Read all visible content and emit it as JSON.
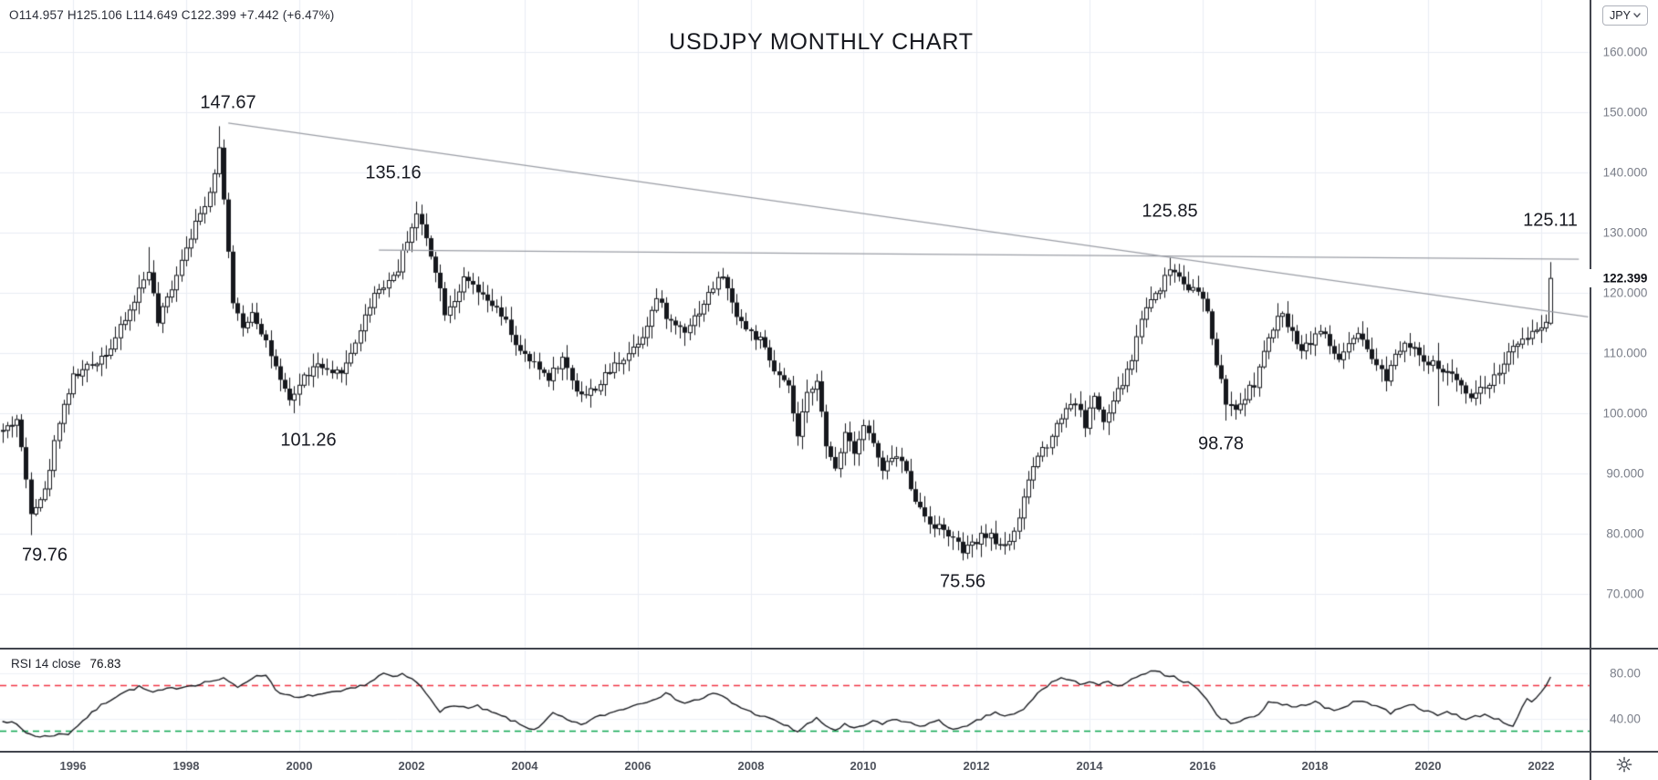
{
  "title": "USDJPY MONTHLY CHART",
  "header": {
    "ohlc": "O114.957 H125.106 L114.649 C122.399 +7.442 (+6.47%)"
  },
  "currency_button": {
    "label": "JPY"
  },
  "price_axis": {
    "ticks": [
      "160.000",
      "150.000",
      "140.000",
      "130.000",
      "120.000",
      "110.000",
      "100.000",
      "90.000",
      "80.000",
      "70.000"
    ],
    "tick_values": [
      160,
      150,
      140,
      130,
      120,
      110,
      100,
      90,
      80,
      70
    ],
    "current_price": "122.399",
    "current_price_value": 122.399
  },
  "time_axis": {
    "years": [
      1996,
      1998,
      2000,
      2002,
      2004,
      2006,
      2008,
      2010,
      2012,
      2014,
      2016,
      2018,
      2020,
      2022
    ]
  },
  "rsi_pane": {
    "label": "RSI 14 close",
    "value": "76.83",
    "ticks": [
      "80.00",
      "40.00"
    ],
    "tick_values": [
      80,
      40
    ],
    "overbought_level": 70,
    "oversold_level": 30
  },
  "annotations": [
    {
      "text": "147.67",
      "m": 45,
      "price": 151.5
    },
    {
      "text": "135.16",
      "m": 80,
      "price": 139.8
    },
    {
      "text": "125.85",
      "m": 245,
      "price": 133.5
    },
    {
      "text": "125.11",
      "m": 326,
      "price": 132.0
    },
    {
      "text": "101.26",
      "m": 62,
      "price": 95.5
    },
    {
      "text": "98.78",
      "m": 256,
      "price": 94.8
    },
    {
      "text": "79.76",
      "m": 6,
      "price": 76.4
    },
    {
      "text": "75.56",
      "m": 201,
      "price": 72.0
    }
  ],
  "chart_data": {
    "type": "candlestick",
    "symbol": "USDJPY",
    "timeframe": "monthly",
    "start_month": "1994-10",
    "end_month": "2022-03",
    "price_axis_range": [
      61,
      168
    ],
    "grid": true,
    "last_bar": {
      "open": 114.957,
      "high": 125.106,
      "low": 114.649,
      "close": 122.399,
      "change": "+7.442",
      "change_pct": "+6.47%"
    },
    "key_extremes": [
      {
        "label": "79.76",
        "type": "low",
        "price": 79.76
      },
      {
        "label": "147.67",
        "type": "high",
        "price": 147.67
      },
      {
        "label": "101.26",
        "type": "low",
        "price": 101.26
      },
      {
        "label": "135.16",
        "type": "high",
        "price": 135.16
      },
      {
        "label": "75.56",
        "type": "low",
        "price": 75.56
      },
      {
        "label": "125.85",
        "type": "high",
        "price": 125.85
      },
      {
        "label": "98.78",
        "type": "low",
        "price": 98.78
      },
      {
        "label": "125.11",
        "type": "high",
        "price": 125.11
      }
    ],
    "close_keypoints": [
      [
        -3,
        97
      ],
      [
        0,
        99
      ],
      [
        3,
        84
      ],
      [
        6,
        87
      ],
      [
        9,
        99
      ],
      [
        12,
        106
      ],
      [
        16,
        108
      ],
      [
        20,
        111
      ],
      [
        24,
        117
      ],
      [
        28,
        124
      ],
      [
        30,
        115
      ],
      [
        33,
        121
      ],
      [
        36,
        128
      ],
      [
        39,
        133
      ],
      [
        41,
        137
      ],
      [
        43,
        144
      ],
      [
        44,
        136
      ],
      [
        46,
        118
      ],
      [
        48,
        114
      ],
      [
        50,
        117
      ],
      [
        53,
        112
      ],
      [
        56,
        105
      ],
      [
        58,
        102
      ],
      [
        61,
        106
      ],
      [
        64,
        108
      ],
      [
        67,
        106
      ],
      [
        70,
        108
      ],
      [
        73,
        114
      ],
      [
        76,
        120
      ],
      [
        79,
        122
      ],
      [
        81,
        124
      ],
      [
        83,
        129
      ],
      [
        85,
        133
      ],
      [
        87,
        129
      ],
      [
        89,
        124
      ],
      [
        91,
        117
      ],
      [
        93,
        119
      ],
      [
        95,
        122
      ],
      [
        97,
        121
      ],
      [
        99,
        119
      ],
      [
        101,
        118
      ],
      [
        104,
        115
      ],
      [
        107,
        110
      ],
      [
        110,
        108
      ],
      [
        113,
        106
      ],
      [
        116,
        109
      ],
      [
        119,
        104
      ],
      [
        121,
        103
      ],
      [
        124,
        105
      ],
      [
        127,
        108
      ],
      [
        130,
        110
      ],
      [
        133,
        113
      ],
      [
        136,
        119
      ],
      [
        139,
        115
      ],
      [
        142,
        114
      ],
      [
        145,
        117
      ],
      [
        148,
        121
      ],
      [
        150,
        123
      ],
      [
        152,
        118
      ],
      [
        155,
        114
      ],
      [
        158,
        112
      ],
      [
        161,
        107
      ],
      [
        164,
        104
      ],
      [
        166,
        96
      ],
      [
        168,
        103
      ],
      [
        170,
        106
      ],
      [
        172,
        94
      ],
      [
        174,
        91
      ],
      [
        176,
        97
      ],
      [
        178,
        94
      ],
      [
        180,
        98
      ],
      [
        182,
        95
      ],
      [
        184,
        90
      ],
      [
        186,
        93
      ],
      [
        188,
        92
      ],
      [
        190,
        88
      ],
      [
        192,
        84
      ],
      [
        194,
        82
      ],
      [
        196,
        81
      ],
      [
        198,
        80
      ],
      [
        200,
        78
      ],
      [
        201,
        77
      ],
      [
        203,
        78
      ],
      [
        206,
        80
      ],
      [
        209,
        78
      ],
      [
        211,
        79
      ],
      [
        213,
        82
      ],
      [
        215,
        89
      ],
      [
        217,
        93
      ],
      [
        219,
        95
      ],
      [
        221,
        98
      ],
      [
        223,
        101
      ],
      [
        225,
        102
      ],
      [
        227,
        98
      ],
      [
        229,
        103
      ],
      [
        231,
        98
      ],
      [
        233,
        102
      ],
      [
        235,
        105
      ],
      [
        237,
        109
      ],
      [
        239,
        116
      ],
      [
        241,
        119
      ],
      [
        243,
        121
      ],
      [
        245,
        124
      ],
      [
        247,
        123
      ],
      [
        249,
        121
      ],
      [
        251,
        120
      ],
      [
        253,
        117
      ],
      [
        255,
        108
      ],
      [
        257,
        102
      ],
      [
        259,
        100
      ],
      [
        261,
        103
      ],
      [
        263,
        105
      ],
      [
        265,
        110
      ],
      [
        267,
        114
      ],
      [
        269,
        117
      ],
      [
        271,
        113
      ],
      [
        273,
        111
      ],
      [
        275,
        112
      ],
      [
        277,
        114
      ],
      [
        279,
        111
      ],
      [
        281,
        109
      ],
      [
        283,
        111
      ],
      [
        285,
        113
      ],
      [
        287,
        110
      ],
      [
        289,
        108
      ],
      [
        291,
        106
      ],
      [
        293,
        110
      ],
      [
        295,
        112
      ],
      [
        297,
        111
      ],
      [
        299,
        108
      ],
      [
        301,
        108
      ],
      [
        303,
        107
      ],
      [
        305,
        106
      ],
      [
        307,
        105
      ],
      [
        309,
        103
      ],
      [
        311,
        104
      ],
      [
        313,
        105
      ],
      [
        315,
        107
      ],
      [
        317,
        110
      ],
      [
        319,
        111
      ],
      [
        321,
        113
      ],
      [
        323,
        114
      ],
      [
        325,
        115
      ],
      [
        326,
        122.399
      ]
    ],
    "bar_overrides": [
      {
        "m": 3,
        "low": 79.76
      },
      {
        "m": 28,
        "high": 127.6
      },
      {
        "m": 43,
        "high": 147.67
      },
      {
        "m": 58,
        "low": 101.26
      },
      {
        "m": 85,
        "high": 135.16
      },
      {
        "m": 150,
        "high": 124.14
      },
      {
        "m": 201,
        "low": 75.56
      },
      {
        "m": 245,
        "high": 125.85
      },
      {
        "m": 257,
        "low": 98.78
      },
      {
        "m": 302,
        "low": 101.2,
        "high": 111.7
      },
      {
        "m": 326,
        "open": 114.957,
        "high": 125.106,
        "low": 114.649,
        "close": 122.399
      }
    ],
    "trendlines": [
      {
        "name": "descending-resistance",
        "m1": 45,
        "p1": 148.2,
        "m2": 334,
        "p2": 116.0
      },
      {
        "name": "horizontal-resistance",
        "m1": 77,
        "p1": 127.1,
        "m2": 332,
        "p2": 125.6
      }
    ],
    "rsi": {
      "period": 14,
      "source": "close",
      "last_value": 76.83,
      "levels": [
        70,
        30
      ],
      "keypoints": [
        [
          -3,
          39
        ],
        [
          0,
          35
        ],
        [
          2,
          28
        ],
        [
          5,
          24
        ],
        [
          8,
          26
        ],
        [
          11,
          27
        ],
        [
          14,
          38
        ],
        [
          18,
          52
        ],
        [
          22,
          62
        ],
        [
          26,
          68
        ],
        [
          29,
          63
        ],
        [
          32,
          66
        ],
        [
          35,
          68
        ],
        [
          38,
          70
        ],
        [
          41,
          73
        ],
        [
          44,
          75
        ],
        [
          47,
          68
        ],
        [
          50,
          76
        ],
        [
          53,
          79
        ],
        [
          55,
          66
        ],
        [
          57,
          61
        ],
        [
          60,
          58
        ],
        [
          63,
          61
        ],
        [
          66,
          62
        ],
        [
          69,
          64
        ],
        [
          72,
          67
        ],
        [
          75,
          72
        ],
        [
          78,
          80
        ],
        [
          80,
          76
        ],
        [
          82,
          79
        ],
        [
          84,
          75
        ],
        [
          86,
          68
        ],
        [
          88,
          58
        ],
        [
          90,
          47
        ],
        [
          92,
          50
        ],
        [
          94,
          52
        ],
        [
          96,
          49
        ],
        [
          98,
          51
        ],
        [
          100,
          47
        ],
        [
          102,
          44
        ],
        [
          104,
          41
        ],
        [
          106,
          37
        ],
        [
          108,
          33
        ],
        [
          110,
          31
        ],
        [
          112,
          36
        ],
        [
          114,
          45
        ],
        [
          116,
          41
        ],
        [
          118,
          37
        ],
        [
          120,
          35
        ],
        [
          123,
          41
        ],
        [
          126,
          45
        ],
        [
          129,
          49
        ],
        [
          132,
          53
        ],
        [
          135,
          57
        ],
        [
          138,
          62
        ],
        [
          140,
          58
        ],
        [
          142,
          54
        ],
        [
          145,
          57
        ],
        [
          148,
          62
        ],
        [
          150,
          60
        ],
        [
          152,
          54
        ],
        [
          154,
          50
        ],
        [
          156,
          46
        ],
        [
          158,
          43
        ],
        [
          160,
          40
        ],
        [
          162,
          37
        ],
        [
          164,
          33
        ],
        [
          166,
          29
        ],
        [
          168,
          35
        ],
        [
          170,
          40
        ],
        [
          172,
          34
        ],
        [
          174,
          30
        ],
        [
          176,
          35
        ],
        [
          178,
          31
        ],
        [
          180,
          34
        ],
        [
          182,
          38
        ],
        [
          184,
          35
        ],
        [
          186,
          40
        ],
        [
          188,
          38
        ],
        [
          190,
          36
        ],
        [
          192,
          34
        ],
        [
          194,
          36
        ],
        [
          196,
          38
        ],
        [
          198,
          33
        ],
        [
          200,
          31
        ],
        [
          202,
          33
        ],
        [
          204,
          38
        ],
        [
          206,
          42
        ],
        [
          208,
          46
        ],
        [
          210,
          42
        ],
        [
          212,
          44
        ],
        [
          214,
          48
        ],
        [
          216,
          58
        ],
        [
          218,
          66
        ],
        [
          220,
          72
        ],
        [
          222,
          76
        ],
        [
          224,
          73
        ],
        [
          226,
          71
        ],
        [
          228,
          73
        ],
        [
          230,
          70
        ],
        [
          232,
          72
        ],
        [
          234,
          68
        ],
        [
          236,
          72
        ],
        [
          238,
          76
        ],
        [
          240,
          80
        ],
        [
          242,
          82
        ],
        [
          244,
          79
        ],
        [
          246,
          77
        ],
        [
          248,
          73
        ],
        [
          250,
          70
        ],
        [
          252,
          62
        ],
        [
          254,
          50
        ],
        [
          256,
          40
        ],
        [
          258,
          37
        ],
        [
          260,
          38
        ],
        [
          262,
          41
        ],
        [
          264,
          44
        ],
        [
          266,
          55
        ],
        [
          268,
          54
        ],
        [
          270,
          52
        ],
        [
          272,
          50
        ],
        [
          274,
          53
        ],
        [
          276,
          55
        ],
        [
          278,
          50
        ],
        [
          280,
          47
        ],
        [
          282,
          51
        ],
        [
          284,
          54
        ],
        [
          286,
          56
        ],
        [
          288,
          53
        ],
        [
          290,
          50
        ],
        [
          292,
          45
        ],
        [
          294,
          50
        ],
        [
          296,
          53
        ],
        [
          298,
          50
        ],
        [
          300,
          46
        ],
        [
          302,
          43
        ],
        [
          304,
          46
        ],
        [
          306,
          44
        ],
        [
          308,
          39
        ],
        [
          310,
          42
        ],
        [
          312,
          44
        ],
        [
          314,
          41
        ],
        [
          316,
          37
        ],
        [
          318,
          34
        ],
        [
          320,
          50
        ],
        [
          321,
          57
        ],
        [
          322,
          54
        ],
        [
          323,
          58
        ],
        [
          324,
          63
        ],
        [
          325,
          68
        ],
        [
          326,
          76.83
        ]
      ]
    }
  },
  "colors": {
    "up_body": "#ffffff",
    "down_body": "#16181d",
    "outline": "#16181d",
    "grid": "#e9edf4",
    "grid_faint": "#eef1f6",
    "trendline": "#9b9ea6",
    "rsi_line": "#1b1d22",
    "overbought_dashed": "#f23645",
    "oversold_dashed": "#0ca750",
    "axis_text": "#7a7e89",
    "dark_text": "#0e1017"
  }
}
